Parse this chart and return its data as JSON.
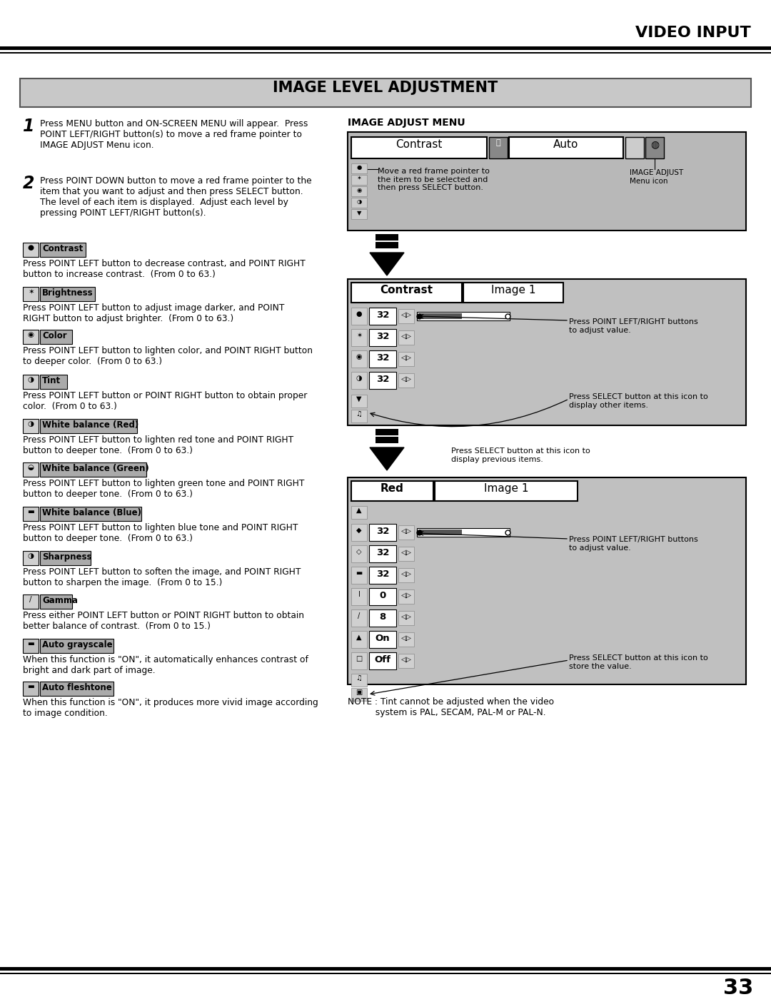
{
  "page_title": "VIDEO INPUT",
  "section_title": "IMAGE LEVEL ADJUSTMENT",
  "page_number": "33",
  "step1_text": "Press MENU button and ON-SCREEN MENU will appear.  Press\nPOINT LEFT/RIGHT button(s) to move a red frame pointer to\nIMAGE ADJUST Menu icon.",
  "step2_text": "Press POINT DOWN button to move a red frame pointer to the\nitem that you want to adjust and then press SELECT button.\nThe level of each item is displayed.  Adjust each level by\npressing POINT LEFT/RIGHT button(s).",
  "labels": [
    "Contrast",
    "Brightness",
    "Color",
    "Tint",
    "White balance (Red)",
    "White balance (Green)",
    "White balance (Blue)",
    "Sharpness",
    "Gamma",
    "Auto grayscale",
    "Auto fleshtone"
  ],
  "body_texts": [
    "Press POINT LEFT button to decrease contrast, and POINT RIGHT\nbutton to increase contrast.  (From 0 to 63.)",
    "Press POINT LEFT button to adjust image darker, and POINT\nRIGHT button to adjust brighter.  (From 0 to 63.)",
    "Press POINT LEFT button to lighten color, and POINT RIGHT button\nto deeper color.  (From 0 to 63.)",
    "Press POINT LEFT button or POINT RIGHT button to obtain proper\ncolor.  (From 0 to 63.)",
    "Press POINT LEFT button to lighten red tone and POINT RIGHT\nbutton to deeper tone.  (From 0 to 63.)",
    "Press POINT LEFT button to lighten green tone and POINT RIGHT\nbutton to deeper tone.  (From 0 to 63.)",
    "Press POINT LEFT button to lighten blue tone and POINT RIGHT\nbutton to deeper tone.  (From 0 to 63.)",
    "Press POINT LEFT button to soften the image, and POINT RIGHT\nbutton to sharpen the image.  (From 0 to 15.)",
    "Press either POINT LEFT button or POINT RIGHT button to obtain\nbetter balance of contrast.  (From 0 to 15.)",
    "When this function is \"ON\", it automatically enhances contrast of\nbright and dark part of image.",
    "When this function is \"ON\", it produces more vivid image according\nto image condition."
  ],
  "menu1_ann": "Move a red frame pointer to\nthe item to be selected and\nthen press SELECT button.",
  "menu1_ann2": "IMAGE ADJUST\nMenu icon",
  "menu2_ann1": "Press POINT LEFT/RIGHT buttons\nto adjust value.",
  "menu2_ann2": "Press SELECT button at this icon to\ndisplay other items.",
  "arrow_ann": "Press SELECT button at this icon to\ndisplay previous items.",
  "menu3_ann1": "Press POINT LEFT/RIGHT buttons\nto adjust value.",
  "menu3_ann2": "Press SELECT button at this icon to\nstore the value.",
  "note_text": "NOTE : Tint cannot be adjusted when the video\n          system is PAL, SECAM, PAL-M or PAL-N."
}
